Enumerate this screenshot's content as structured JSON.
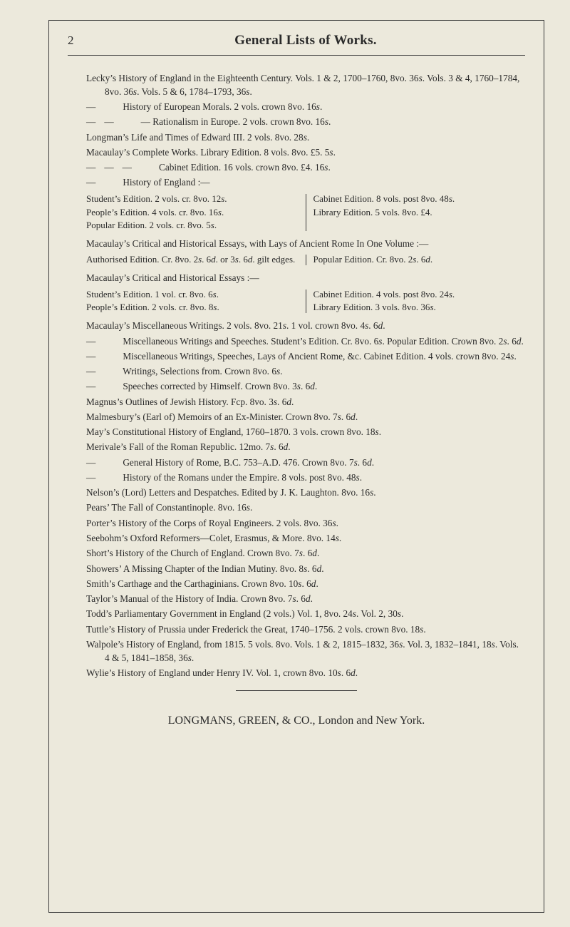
{
  "pageNumber": "2",
  "title": "General Lists of Works.",
  "lines": [
    {
      "cls": "entry",
      "html": "Lecky’s History of England in the Eighteenth Century.  Vols. 1 & 2, 1700–1760, 8vo. 36<span class='i'>s</span>.  Vols. 3 & 4, 1760–1784, 8vo. 36<span class='i'>s</span>.  Vols. 5 & 6, 1784–1793, 36<span class='i'>s</span>."
    },
    {
      "cls": "entry sub",
      "html": "<span class='dash'>—</span> History of European Morals.  2 vols. crown 8vo. 16<span class='i'>s</span>."
    },
    {
      "cls": "entry sub",
      "html": "<span class='dash'>—</span>  <span class='dash'>—</span>  — Rationalism in Europe.  2 vols. crown 8vo. 16<span class='i'>s</span>."
    },
    {
      "cls": "entry",
      "html": "Longman’s Life and Times of Edward III.  2 vols. 8vo. 28<span class='i'>s</span>."
    },
    {
      "cls": "entry",
      "html": "Macaulay’s Complete Works.  Library Edition.  8 vols. 8vo. £5. 5<span class='i'>s</span>."
    },
    {
      "cls": "entry sub",
      "html": "<span class='dash'>—</span>  <span class='dash'>—</span>  <span class='dash'>—</span> Cabinet Edition.  16 vols. crown 8vo. £4. 16<span class='i'>s</span>."
    },
    {
      "cls": "entry sub",
      "html": "<span class='dash'>—</span> History of England :—"
    }
  ],
  "twocolA": {
    "left": [
      "Student’s Edition. 2 vols. cr. 8vo. 12<span class='i'>s</span>.",
      "People’s Edition.  4 vols. cr. 8vo. 16<span class='i'>s</span>.",
      "Popular Edition.  2 vols. cr. 8vo. 5<span class='i'>s</span>."
    ],
    "right": [
      "Cabinet Edition.  8 vols. post 8vo. 48<span class='i'>s</span>.",
      "Library Edition.  5 vols. 8vo. £4."
    ]
  },
  "linesB": [
    {
      "cls": "entry",
      "html": "Macaulay’s Critical and Historical Essays, with Lays of Ancient Rome  In One Volume :—"
    }
  ],
  "twocolB": {
    "left": [
      "Authorised Edition.  Cr. 8vo. 2<span class='i'>s</span>. 6<span class='i'>d</span>. or 3<span class='i'>s</span>. 6<span class='i'>d</span>. gilt edges."
    ],
    "right": [
      "Popular Edition.  Cr. 8vo. 2<span class='i'>s</span>. 6<span class='i'>d</span>."
    ]
  },
  "linesC": [
    {
      "cls": "entry",
      "html": "Macaulay’s Critical and Historical Essays :—"
    }
  ],
  "twocolC": {
    "left": [
      "Student’s Edition.  1 vol. cr. 8vo. 6<span class='i'>s</span>.",
      "People’s Edition.  2 vols. cr. 8vo. 8<span class='i'>s</span>."
    ],
    "right": [
      "Cabinet Edition.  4 vols. post 8vo. 24<span class='i'>s</span>.",
      "Library Edition.  3 vols. 8vo. 36<span class='i'>s</span>."
    ]
  },
  "linesD": [
    {
      "cls": "entry",
      "html": "Macaulay’s Miscellaneous Writings.  2 vols. 8vo. 21<span class='i'>s</span>.  1 vol. crown 8vo. 4<span class='i'>s</span>. 6<span class='i'>d</span>."
    },
    {
      "cls": "entry sub",
      "html": "<span class='dash'>—</span> Miscellaneous Writings and Speeches.  Student’s Edition.  Cr. 8vo. 6<span class='i'>s</span>.  Popular Edition.  Crown 8vo. 2<span class='i'>s</span>. 6<span class='i'>d</span>."
    },
    {
      "cls": "entry sub",
      "html": "<span class='dash'>—</span> Miscellaneous Writings, Speeches, Lays of Ancient Rome, &c. Cabinet Edition.  4 vols. crown 8vo. 24<span class='i'>s</span>."
    },
    {
      "cls": "entry sub",
      "html": "<span class='dash'>—</span> Writings, Selections from.  Crown 8vo. 6<span class='i'>s</span>."
    },
    {
      "cls": "entry sub",
      "html": "<span class='dash'>—</span> Speeches corrected by Himself.  Crown 8vo. 3<span class='i'>s</span>. 6<span class='i'>d</span>."
    },
    {
      "cls": "entry",
      "html": "Magnus’s Outlines of Jewish History.  Fcp. 8vo. 3<span class='i'>s</span>. 6<span class='i'>d</span>."
    },
    {
      "cls": "entry",
      "html": "Malmesbury’s (Earl of) Memoirs of an Ex-Minister.  Crown 8vo. 7<span class='i'>s</span>. 6<span class='i'>d</span>."
    },
    {
      "cls": "entry",
      "html": "May’s Constitutional History of England, 1760–1870.  3 vols. crown 8vo. 18<span class='i'>s</span>."
    },
    {
      "cls": "entry",
      "html": "Merivale’s Fall of the Roman Republic.  12mo. 7<span class='i'>s</span>. 6<span class='i'>d</span>."
    },
    {
      "cls": "entry sub",
      "html": "<span class='dash'>—</span> General History of Rome, B.C. 753–A.D. 476.  Crown 8vo. 7<span class='i'>s</span>. 6<span class='i'>d</span>."
    },
    {
      "cls": "entry sub",
      "html": "<span class='dash'>—</span> History of the Romans under the Empire.  8 vols. post 8vo. 48<span class='i'>s</span>."
    },
    {
      "cls": "entry",
      "html": "Nelson’s (Lord) Letters and Despatches.  Edited by J. K. Laughton.  8vo. 16<span class='i'>s</span>."
    },
    {
      "cls": "entry",
      "html": "Pears’ The Fall of Constantinople.  8vo. 16<span class='i'>s</span>."
    },
    {
      "cls": "entry",
      "html": "Porter’s History of the Corps of Royal Engineers.  2 vols. 8vo. 36<span class='i'>s</span>."
    },
    {
      "cls": "entry",
      "html": "Seebohm’s Oxford Reformers—Colet, Erasmus, & More.  8vo. 14<span class='i'>s</span>."
    },
    {
      "cls": "entry",
      "html": "Short’s History of the Church of England.  Crown 8vo. 7<span class='i'>s</span>. 6<span class='i'>d</span>."
    },
    {
      "cls": "entry",
      "html": "Showers’ A Missing Chapter of the Indian Mutiny.  8vo. 8<span class='i'>s</span>. 6<span class='i'>d</span>."
    },
    {
      "cls": "entry",
      "html": "Smith’s Carthage and the Carthaginians.  Crown 8vo. 10<span class='i'>s</span>. 6<span class='i'>d</span>."
    },
    {
      "cls": "entry",
      "html": "Taylor’s Manual of the History of India.  Crown 8vo. 7<span class='i'>s</span>. 6<span class='i'>d</span>."
    },
    {
      "cls": "entry",
      "html": "Todd’s Parliamentary Government in England (2 vols.)  Vol. 1, 8vo. 24<span class='i'>s</span>.  Vol. 2, 30<span class='i'>s</span>."
    },
    {
      "cls": "entry",
      "html": "Tuttle’s History of Prussia under Frederick the Great, 1740–1756.  2 vols. crown 8vo. 18<span class='i'>s</span>."
    },
    {
      "cls": "entry",
      "html": "Walpole’s History of England, from 1815.  5 vols. 8vo.  Vols. 1 & 2, 1815–1832, 36<span class='i'>s</span>.  Vol. 3, 1832–1841, 18<span class='i'>s</span>.  Vols. 4 & 5, 1841–1858, 36<span class='i'>s</span>."
    },
    {
      "cls": "entry",
      "html": "Wylie’s History of England under Henry IV.  Vol. 1, crown 8vo. 10<span class='i'>s</span>. 6<span class='i'>d</span>."
    }
  ],
  "footer": "LONGMANS, GREEN, & CO., London and New York."
}
